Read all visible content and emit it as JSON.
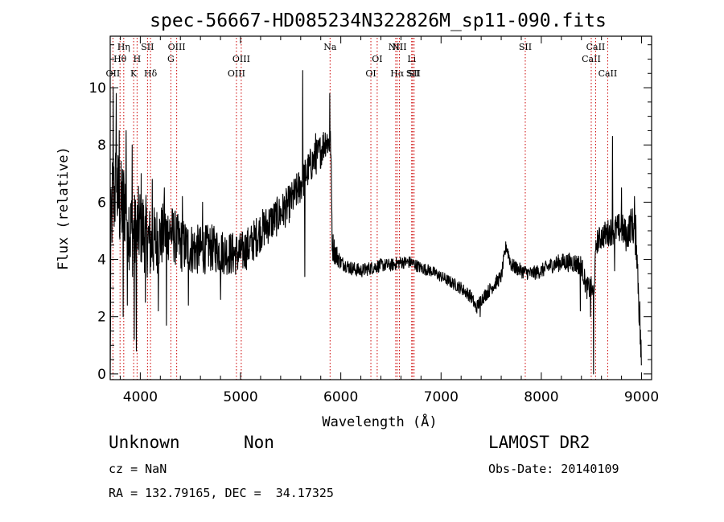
{
  "chart_data": {
    "type": "line",
    "title": "spec-56667-HD085234N322826M_sp11-090.fits",
    "xlabel": "Wavelength (Å)",
    "ylabel": "Flux (relative)",
    "xlim": [
      3700,
      9100
    ],
    "ylim": [
      -0.2,
      11.8
    ],
    "xticks": [
      4000,
      5000,
      6000,
      7000,
      8000,
      9000
    ],
    "yticks": [
      0,
      2,
      4,
      6,
      8,
      10
    ],
    "grid": false,
    "line_color": "#000000",
    "marker_color": "#cc0000",
    "line_markers": [
      {
        "label": "OII",
        "x": 3727,
        "row": 3
      },
      {
        "label": "Hθ",
        "x": 3798,
        "row": 2
      },
      {
        "label": "Hη",
        "x": 3835,
        "row": 1
      },
      {
        "label": "K",
        "x": 3934,
        "row": 3
      },
      {
        "label": "H",
        "x": 3968,
        "row": 2
      },
      {
        "label": "SII",
        "x": 4072,
        "row": 1
      },
      {
        "label": "Hδ",
        "x": 4102,
        "row": 3
      },
      {
        "label": "G",
        "x": 4305,
        "row": 2
      },
      {
        "label": "OIII",
        "x": 4363,
        "row": 1
      },
      {
        "label": "OIII",
        "x": 4959,
        "row": 3
      },
      {
        "label": "OIII",
        "x": 5007,
        "row": 2
      },
      {
        "label": "Na",
        "x": 5893,
        "row": 1
      },
      {
        "label": "OI",
        "x": 6300,
        "row": 3
      },
      {
        "label": "OI",
        "x": 6363,
        "row": 2
      },
      {
        "label": "NII",
        "x": 6548,
        "row": 1
      },
      {
        "label": "Hα",
        "x": 6563,
        "row": 3
      },
      {
        "label": "NII",
        "x": 6584,
        "row": 1
      },
      {
        "label": "Li",
        "x": 6707,
        "row": 2
      },
      {
        "label": "SII",
        "x": 6716,
        "row": 3
      },
      {
        "label": "SII",
        "x": 6731,
        "row": 3
      },
      {
        "label": "SII",
        "x": 7840,
        "row": 1
      },
      {
        "label": "CaII",
        "x": 8498,
        "row": 2
      },
      {
        "label": "CaII",
        "x": 8542,
        "row": 1
      },
      {
        "label": "CaII",
        "x": 8662,
        "row": 3
      }
    ],
    "spectrum_knots": [
      [
        3700,
        0
      ],
      [
        3705,
        4.2
      ],
      [
        3720,
        6.0
      ],
      [
        3760,
        6.5
      ],
      [
        3800,
        5.8
      ],
      [
        3850,
        6.0
      ],
      [
        3900,
        5.0
      ],
      [
        3950,
        4.8
      ],
      [
        4000,
        5.2
      ],
      [
        4050,
        4.9
      ],
      [
        4100,
        4.5
      ],
      [
        4200,
        4.8
      ],
      [
        4300,
        5.0
      ],
      [
        4400,
        4.5
      ],
      [
        4500,
        4.4
      ],
      [
        4600,
        4.3
      ],
      [
        4700,
        4.4
      ],
      [
        4800,
        4.3
      ],
      [
        4900,
        4.2
      ],
      [
        5000,
        4.2
      ],
      [
        5100,
        4.5
      ],
      [
        5200,
        5.0
      ],
      [
        5300,
        5.3
      ],
      [
        5400,
        5.6
      ],
      [
        5500,
        6.0
      ],
      [
        5600,
        6.6
      ],
      [
        5700,
        7.3
      ],
      [
        5800,
        7.8
      ],
      [
        5850,
        8.2
      ],
      [
        5900,
        8.0
      ],
      [
        5915,
        4.5
      ],
      [
        5950,
        4.2
      ],
      [
        6000,
        3.9
      ],
      [
        6100,
        3.7
      ],
      [
        6200,
        3.6
      ],
      [
        6300,
        3.7
      ],
      [
        6400,
        3.8
      ],
      [
        6500,
        3.8
      ],
      [
        6600,
        3.9
      ],
      [
        6700,
        3.9
      ],
      [
        6800,
        3.7
      ],
      [
        6900,
        3.6
      ],
      [
        7000,
        3.4
      ],
      [
        7100,
        3.2
      ],
      [
        7200,
        3.0
      ],
      [
        7300,
        2.7
      ],
      [
        7350,
        2.3
      ],
      [
        7400,
        2.6
      ],
      [
        7500,
        3.0
      ],
      [
        7600,
        3.4
      ],
      [
        7650,
        4.5
      ],
      [
        7700,
        3.8
      ],
      [
        7800,
        3.6
      ],
      [
        7900,
        3.5
      ],
      [
        8000,
        3.6
      ],
      [
        8100,
        3.8
      ],
      [
        8200,
        3.9
      ],
      [
        8300,
        3.9
      ],
      [
        8400,
        3.8
      ],
      [
        8450,
        3.0
      ],
      [
        8500,
        3.0
      ],
      [
        8520,
        2.7
      ],
      [
        8550,
        4.6
      ],
      [
        8600,
        4.8
      ],
      [
        8700,
        5.0
      ],
      [
        8800,
        5.1
      ],
      [
        8850,
        4.8
      ],
      [
        8900,
        5.3
      ],
      [
        8950,
        4.7
      ],
      [
        9000,
        0.3
      ]
    ],
    "spectrum_spikes": [
      [
        3730,
        10.0
      ],
      [
        3760,
        9.8
      ],
      [
        3790,
        8.5
      ],
      [
        3830,
        2.0
      ],
      [
        3860,
        8.5
      ],
      [
        3870,
        2.4
      ],
      [
        3920,
        8.0
      ],
      [
        3940,
        1.2
      ],
      [
        3960,
        0.8
      ],
      [
        4010,
        7.0
      ],
      [
        4050,
        2.5
      ],
      [
        4120,
        6.8
      ],
      [
        4180,
        2.2
      ],
      [
        4240,
        6.5
      ],
      [
        4260,
        1.7
      ],
      [
        4420,
        6.2
      ],
      [
        4480,
        2.4
      ],
      [
        4620,
        6.0
      ],
      [
        4800,
        2.6
      ],
      [
        5620,
        10.6
      ],
      [
        5640,
        3.4
      ],
      [
        5750,
        8.4
      ],
      [
        5890,
        9.8
      ],
      [
        7390,
        2.0
      ],
      [
        8390,
        2.2
      ],
      [
        8490,
        2.0
      ],
      [
        8520,
        0.0
      ],
      [
        8710,
        8.3
      ],
      [
        8730,
        3.6
      ],
      [
        8800,
        6.5
      ],
      [
        8930,
        6.2
      ],
      [
        8960,
        3.7
      ]
    ],
    "spectrum_noise": [
      [
        3700,
        1.8
      ],
      [
        4000,
        1.5
      ],
      [
        4300,
        1.0
      ],
      [
        4800,
        0.8
      ],
      [
        5300,
        0.7
      ],
      [
        5900,
        0.6
      ],
      [
        6000,
        0.25
      ],
      [
        7000,
        0.2
      ],
      [
        7600,
        0.25
      ],
      [
        8000,
        0.25
      ],
      [
        8500,
        0.4
      ],
      [
        8900,
        0.6
      ],
      [
        9000,
        1.0
      ]
    ]
  },
  "info": {
    "object_name": "Unknown",
    "object_class": "Non",
    "survey": "LAMOST DR2",
    "redshift_line": "cz = NaN",
    "obs_date_line": "Obs-Date: 20140109",
    "coords_line": "RA = 132.79165, DEC =  34.17325"
  }
}
